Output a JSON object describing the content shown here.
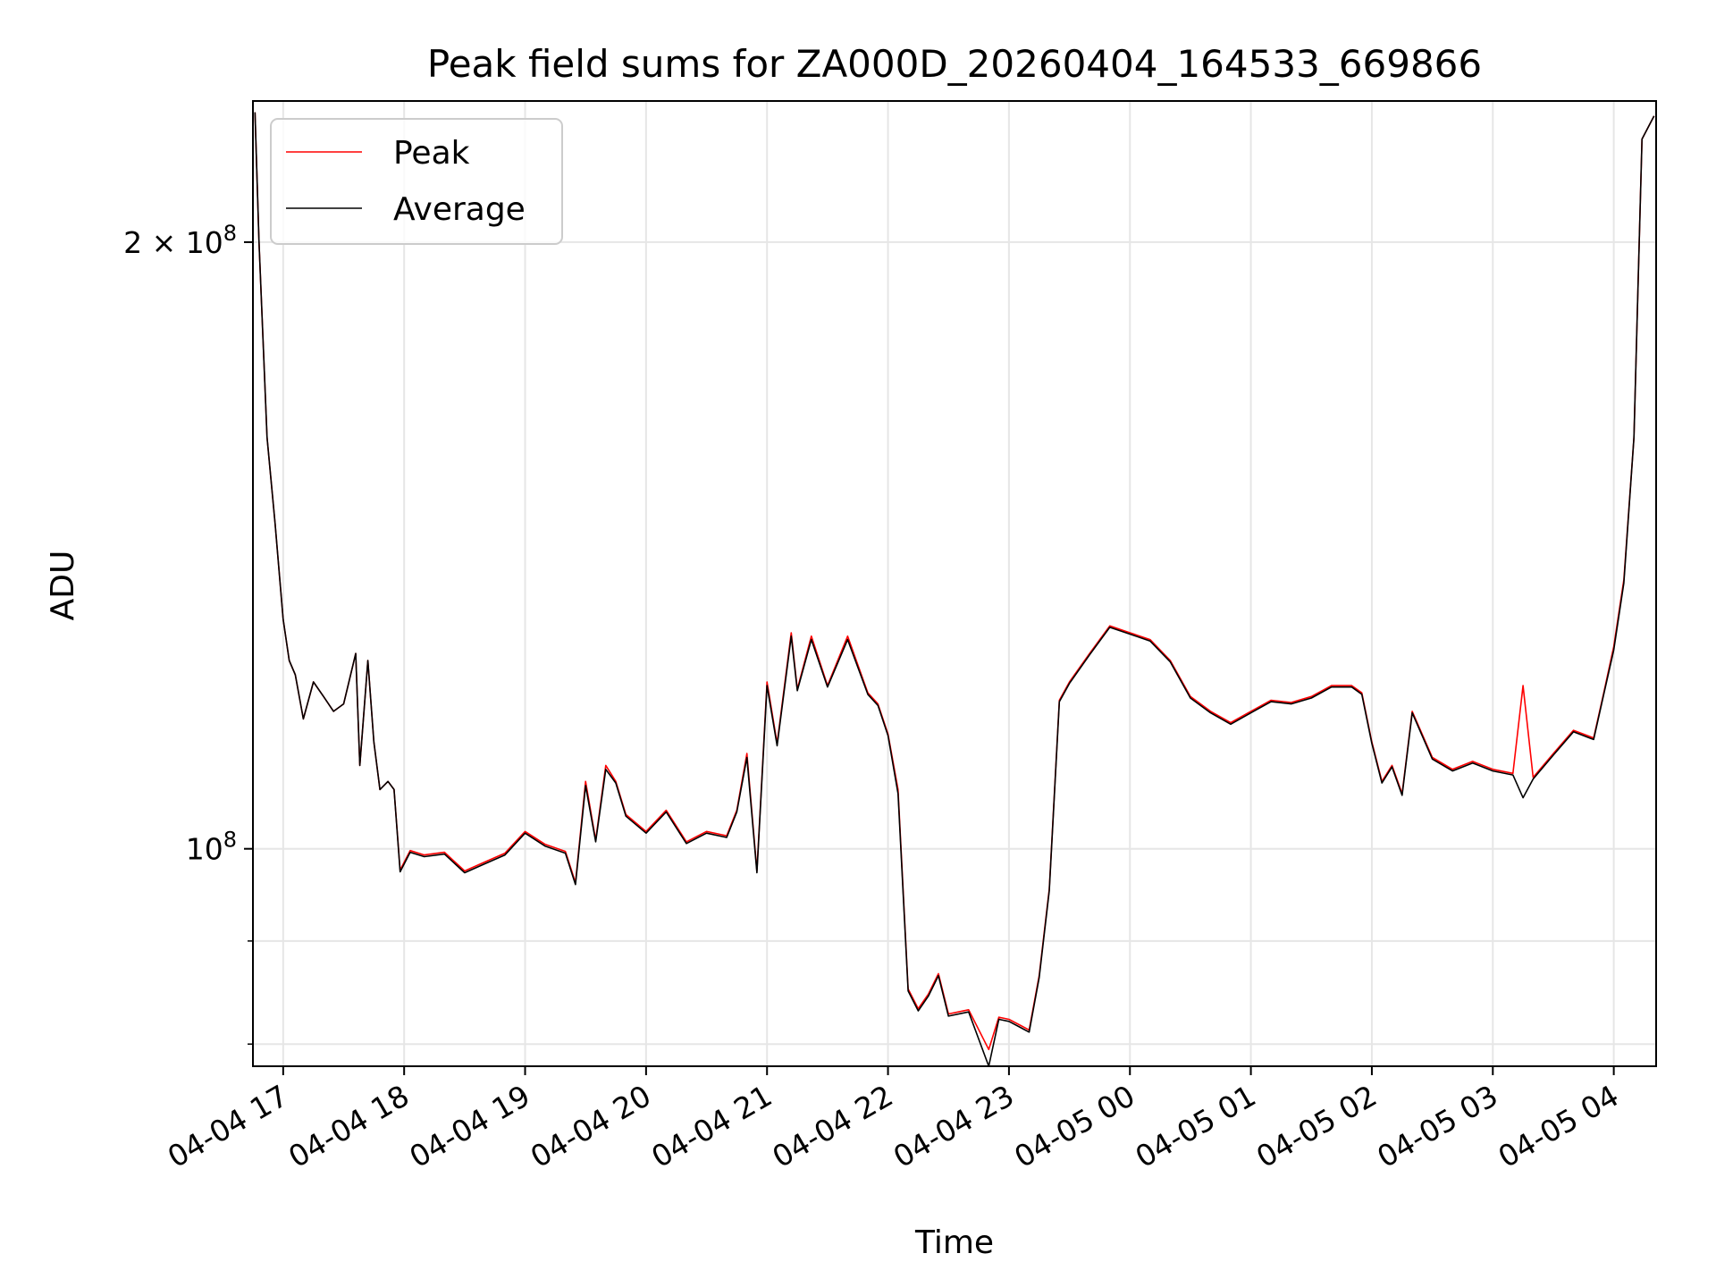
{
  "chart_data": {
    "type": "line",
    "title": "Peak field sums for ZA000D_20260404_164533_669866",
    "xlabel": "Time",
    "ylabel": "ADU",
    "y_scale": "log",
    "grid": true,
    "legend_position": "top-left",
    "xlim": [
      "2026-04-04 16:45",
      "2026-04-05 04:21"
    ],
    "ylim": [
      78000000,
      235000000
    ],
    "x_ticks": [
      "2026-04-04 17:00",
      "2026-04-04 18:00",
      "2026-04-04 19:00",
      "2026-04-04 20:00",
      "2026-04-04 21:00",
      "2026-04-04 22:00",
      "2026-04-04 23:00",
      "2026-04-05 00:00",
      "2026-04-05 01:00",
      "2026-04-05 02:00",
      "2026-04-05 03:00",
      "2026-04-05 04:00"
    ],
    "x_tick_labels": [
      "04-04 17",
      "04-04 18",
      "04-04 19",
      "04-04 20",
      "04-04 21",
      "04-04 22",
      "04-04 23",
      "04-05 00",
      "04-05 01",
      "04-05 02",
      "04-05 03",
      "04-05 04"
    ],
    "y_major_ticks": [
      100000000,
      200000000
    ],
    "y_major_tick_labels": [
      {
        "base": "10",
        "exp": "8"
      },
      {
        "mantissa": "2",
        "times": "×",
        "base": "10",
        "exp": "8"
      }
    ],
    "y_minor_ticks": [
      80000000,
      90000000
    ],
    "x": [
      "2026-04-04 16:46",
      "2026-04-04 16:48",
      "2026-04-04 16:52",
      "2026-04-04 16:56",
      "2026-04-04 17:00",
      "2026-04-04 17:03",
      "2026-04-04 17:06",
      "2026-04-04 17:10",
      "2026-04-04 17:15",
      "2026-04-04 17:20",
      "2026-04-04 17:25",
      "2026-04-04 17:30",
      "2026-04-04 17:36",
      "2026-04-04 17:38",
      "2026-04-04 17:42",
      "2026-04-04 17:45",
      "2026-04-04 17:48",
      "2026-04-04 17:52",
      "2026-04-04 17:55",
      "2026-04-04 17:58",
      "2026-04-04 18:03",
      "2026-04-04 18:10",
      "2026-04-04 18:20",
      "2026-04-04 18:30",
      "2026-04-04 18:40",
      "2026-04-04 18:50",
      "2026-04-04 19:00",
      "2026-04-04 19:10",
      "2026-04-04 19:20",
      "2026-04-04 19:25",
      "2026-04-04 19:30",
      "2026-04-04 19:35",
      "2026-04-04 19:40",
      "2026-04-04 19:45",
      "2026-04-04 19:50",
      "2026-04-04 20:00",
      "2026-04-04 20:10",
      "2026-04-04 20:20",
      "2026-04-04 20:30",
      "2026-04-04 20:40",
      "2026-04-04 20:45",
      "2026-04-04 20:50",
      "2026-04-04 20:55",
      "2026-04-04 21:00",
      "2026-04-04 21:05",
      "2026-04-04 21:12",
      "2026-04-04 21:15",
      "2026-04-04 21:22",
      "2026-04-04 21:30",
      "2026-04-04 21:40",
      "2026-04-04 21:50",
      "2026-04-04 21:55",
      "2026-04-04 22:00",
      "2026-04-04 22:05",
      "2026-04-04 22:10",
      "2026-04-04 22:15",
      "2026-04-04 22:20",
      "2026-04-04 22:25",
      "2026-04-04 22:30",
      "2026-04-04 22:40",
      "2026-04-04 22:50",
      "2026-04-04 22:55",
      "2026-04-04 23:00",
      "2026-04-04 23:10",
      "2026-04-04 23:15",
      "2026-04-04 23:20",
      "2026-04-04 23:25",
      "2026-04-04 23:30",
      "2026-04-04 23:40",
      "2026-04-04 23:50",
      "2026-04-05 00:00",
      "2026-04-05 00:10",
      "2026-04-05 00:20",
      "2026-04-05 00:30",
      "2026-04-05 00:40",
      "2026-04-05 00:50",
      "2026-04-05 01:00",
      "2026-04-05 01:10",
      "2026-04-05 01:20",
      "2026-04-05 01:30",
      "2026-04-05 01:40",
      "2026-04-05 01:50",
      "2026-04-05 01:55",
      "2026-04-05 02:00",
      "2026-04-05 02:05",
      "2026-04-05 02:10",
      "2026-04-05 02:15",
      "2026-04-05 02:20",
      "2026-04-05 02:30",
      "2026-04-05 02:40",
      "2026-04-05 02:50",
      "2026-04-05 03:00",
      "2026-04-05 03:10",
      "2026-04-05 03:15",
      "2026-04-05 03:20",
      "2026-04-05 03:30",
      "2026-04-05 03:40",
      "2026-04-05 03:50",
      "2026-04-05 03:55",
      "2026-04-05 04:00",
      "2026-04-05 04:05",
      "2026-04-05 04:10",
      "2026-04-05 04:14",
      "2026-04-05 04:20"
    ],
    "series": [
      {
        "name": "Peak",
        "color": "#ff0000",
        "values": [
          232000000,
          200000000,
          160000000,
          145000000,
          130000000,
          124000000,
          122000000,
          116000000,
          121000000,
          119000000,
          117000000,
          118000000,
          125000000,
          110000000,
          124000000,
          113000000,
          107000000,
          108000000,
          107000000,
          97600000,
          99800000,
          99300000,
          99600000,
          97500000,
          98500000,
          99500000,
          102000000,
          100500000,
          99700000,
          96200000,
          108000000,
          101000000,
          110000000,
          108000000,
          104000000,
          102000000,
          104500000,
          100800000,
          102000000,
          101500000,
          104500000,
          111500000,
          97500000,
          121000000,
          112800000,
          128000000,
          120000000,
          127500000,
          120500000,
          127500000,
          119500000,
          118000000,
          114000000,
          107000000,
          85200000,
          83300000,
          84700000,
          86700000,
          82800000,
          83200000,
          79500000,
          82500000,
          82300000,
          81300000,
          86500000,
          95500000,
          118500000,
          121000000,
          125000000,
          129000000,
          128000000,
          127000000,
          124000000,
          119000000,
          117000000,
          115500000,
          117000000,
          118500000,
          118200000,
          119000000,
          120500000,
          120500000,
          119500000,
          113000000,
          108000000,
          110000000,
          106500000,
          117000000,
          111000000,
          109500000,
          110500000,
          109500000,
          109000000,
          120500000,
          108500000,
          111500000,
          114500000,
          113500000,
          119500000,
          126000000,
          136000000,
          160000000,
          225000000,
          231000000
        ]
      },
      {
        "name": "Average",
        "color": "#000000",
        "values": [
          232000000,
          200000000,
          160000000,
          145000000,
          130000000,
          124000000,
          122000000,
          116000000,
          121000000,
          119000000,
          117000000,
          118000000,
          125000000,
          110000000,
          124000000,
          113000000,
          107000000,
          108000000,
          107000000,
          97400000,
          99600000,
          99100000,
          99400000,
          97300000,
          98300000,
          99300000,
          101800000,
          100300000,
          99500000,
          96000000,
          107500000,
          100800000,
          109500000,
          107800000,
          103800000,
          101800000,
          104300000,
          100600000,
          101800000,
          101300000,
          104300000,
          111000000,
          97300000,
          120500000,
          112500000,
          127500000,
          119800000,
          127000000,
          120300000,
          127000000,
          119300000,
          117800000,
          113800000,
          106500000,
          85000000,
          83100000,
          84500000,
          86500000,
          82600000,
          83000000,
          78000000,
          82300000,
          82100000,
          81100000,
          86300000,
          95300000,
          118300000,
          120800000,
          124800000,
          128800000,
          127800000,
          126800000,
          123800000,
          118800000,
          116800000,
          115300000,
          116800000,
          118300000,
          118000000,
          118800000,
          120300000,
          120300000,
          119300000,
          112800000,
          107800000,
          109800000,
          106300000,
          116800000,
          110800000,
          109300000,
          110300000,
          109300000,
          108800000,
          106000000,
          108300000,
          111300000,
          114300000,
          113300000,
          119300000,
          125500000,
          135500000,
          160000000,
          225000000,
          231000000
        ]
      }
    ]
  }
}
